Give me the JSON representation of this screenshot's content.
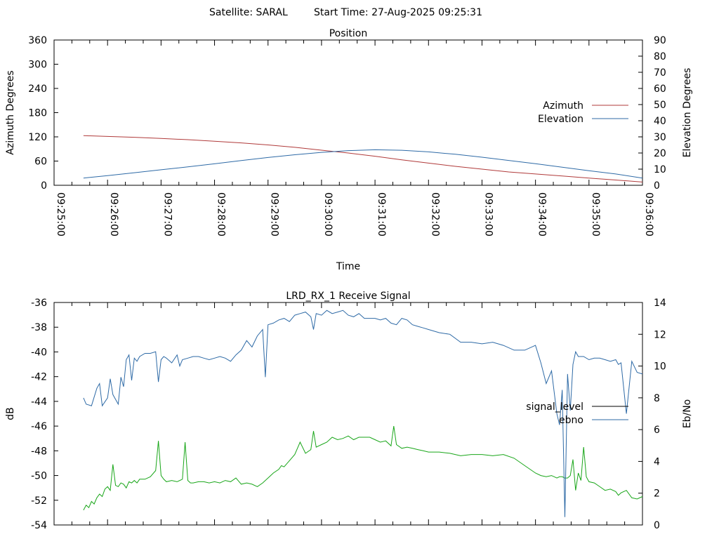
{
  "header": {
    "satellite": "Satellite: SARAL",
    "start_time": "Start Time: 27-Aug-2025 09:25:31"
  },
  "chart_data": [
    {
      "type": "line",
      "title": "Position",
      "xlabel": "Time",
      "ylabel": "Azimuth Degrees",
      "y2label": "Elevation Degrees",
      "x_ticks": [
        "09:25:00",
        "09:26:00",
        "09:27:00",
        "09:28:00",
        "09:29:00",
        "09:30:00",
        "09:31:00",
        "09:32:00",
        "09:33:00",
        "09:34:00",
        "09:35:00",
        "09:36:00"
      ],
      "x_range_minutes": [
        0,
        11
      ],
      "ylim": [
        0,
        360
      ],
      "y_ticks": [
        0,
        60,
        120,
        180,
        240,
        300,
        360
      ],
      "y2lim": [
        0,
        90
      ],
      "y2_ticks": [
        0,
        10,
        20,
        30,
        40,
        50,
        60,
        70,
        80,
        90
      ],
      "legend_position": "right",
      "series": [
        {
          "name": "Azimuth",
          "axis": "y",
          "color": "#b03a3a",
          "x": [
            0.55,
            1.0,
            1.5,
            2.0,
            2.5,
            3.0,
            3.5,
            4.0,
            4.5,
            5.0,
            5.5,
            6.0,
            6.5,
            7.0,
            7.5,
            8.0,
            8.5,
            9.0,
            9.5,
            10.0,
            10.5,
            11.0
          ],
          "y": [
            123,
            121,
            119,
            116,
            113,
            109,
            105,
            100,
            94,
            87,
            80,
            72,
            63,
            55,
            47,
            40,
            33,
            28,
            23,
            18,
            13,
            8
          ]
        },
        {
          "name": "Elevation",
          "axis": "y2",
          "color": "#2e6aa6",
          "x": [
            0.55,
            1.0,
            1.5,
            2.0,
            2.5,
            3.0,
            3.5,
            4.0,
            4.5,
            5.0,
            5.5,
            6.0,
            6.5,
            7.0,
            7.5,
            8.0,
            8.5,
            9.0,
            9.5,
            10.0,
            10.5,
            11.0
          ],
          "y": [
            4.5,
            6.0,
            7.8,
            9.6,
            11.4,
            13.3,
            15.3,
            17.2,
            18.9,
            20.4,
            21.5,
            22.0,
            21.7,
            20.7,
            19.2,
            17.4,
            15.4,
            13.4,
            11.2,
            9.0,
            7.0,
            4.5
          ]
        }
      ]
    },
    {
      "type": "line",
      "title": "LRD_RX_1 Receive Signal",
      "ylabel": "dB",
      "y2label": "Eb/No",
      "x_range_minutes": [
        0,
        11
      ],
      "ylim": [
        -54,
        -36
      ],
      "y_ticks": [
        -54,
        -52,
        -50,
        -48,
        -46,
        -44,
        -42,
        -40,
        -38,
        -36
      ],
      "y2lim": [
        0,
        14
      ],
      "y2_ticks": [
        0,
        2,
        4,
        6,
        8,
        10,
        12,
        14
      ],
      "legend_position": "right",
      "legend": [
        "signal_level",
        "ebno"
      ],
      "series": [
        {
          "name": "signal_level",
          "axis": "y",
          "color": "#19a619",
          "x": [
            0.55,
            0.6,
            0.65,
            0.7,
            0.75,
            0.8,
            0.85,
            0.9,
            0.95,
            1.0,
            1.05,
            1.1,
            1.15,
            1.2,
            1.25,
            1.3,
            1.35,
            1.4,
            1.45,
            1.5,
            1.55,
            1.6,
            1.7,
            1.8,
            1.9,
            1.95,
            2.0,
            2.05,
            2.1,
            2.2,
            2.3,
            2.4,
            2.45,
            2.5,
            2.55,
            2.6,
            2.7,
            2.8,
            2.9,
            3.0,
            3.1,
            3.2,
            3.3,
            3.4,
            3.5,
            3.6,
            3.7,
            3.8,
            3.9,
            4.0,
            4.1,
            4.2,
            4.25,
            4.3,
            4.4,
            4.5,
            4.6,
            4.7,
            4.8,
            4.85,
            4.9,
            5.0,
            5.1,
            5.2,
            5.3,
            5.4,
            5.5,
            5.6,
            5.7,
            5.8,
            5.9,
            6.0,
            6.1,
            6.2,
            6.3,
            6.35,
            6.4,
            6.5,
            6.6,
            6.7,
            6.8,
            6.9,
            7.0,
            7.2,
            7.4,
            7.6,
            7.8,
            8.0,
            8.2,
            8.4,
            8.6,
            8.8,
            9.0,
            9.1,
            9.2,
            9.3,
            9.4,
            9.45,
            9.5,
            9.55,
            9.6,
            9.65,
            9.7,
            9.75,
            9.8,
            9.85,
            9.9,
            9.95,
            10.0,
            10.1,
            10.2,
            10.3,
            10.4,
            10.5,
            10.55,
            10.6,
            10.7,
            10.8,
            10.9,
            11.0
          ],
          "y": [
            -52.8,
            -52.4,
            -52.6,
            -52.1,
            -52.3,
            -51.8,
            -51.5,
            -51.7,
            -51.1,
            -50.9,
            -51.2,
            -49.1,
            -50.8,
            -50.9,
            -50.6,
            -50.7,
            -51.0,
            -50.5,
            -50.6,
            -50.4,
            -50.6,
            -50.3,
            -50.3,
            -50.1,
            -49.6,
            -47.2,
            -50.0,
            -50.3,
            -50.5,
            -50.4,
            -50.5,
            -50.3,
            -47.3,
            -50.4,
            -50.6,
            -50.6,
            -50.5,
            -50.5,
            -50.6,
            -50.5,
            -50.6,
            -50.4,
            -50.5,
            -50.2,
            -50.7,
            -50.6,
            -50.7,
            -50.9,
            -50.6,
            -50.2,
            -49.8,
            -49.5,
            -49.2,
            -49.3,
            -48.8,
            -48.3,
            -47.3,
            -48.2,
            -47.9,
            -46.4,
            -47.7,
            -47.5,
            -47.3,
            -46.9,
            -47.1,
            -47.0,
            -46.8,
            -47.1,
            -46.9,
            -46.9,
            -46.9,
            -47.1,
            -47.3,
            -47.2,
            -47.6,
            -46.0,
            -47.5,
            -47.8,
            -47.7,
            -47.8,
            -47.9,
            -48.0,
            -48.1,
            -48.1,
            -48.2,
            -48.4,
            -48.3,
            -48.3,
            -48.4,
            -48.3,
            -48.6,
            -49.2,
            -49.8,
            -50.0,
            -50.1,
            -50.0,
            -50.2,
            -50.1,
            -50.1,
            -50.2,
            -50.2,
            -50.0,
            -48.7,
            -51.2,
            -49.8,
            -50.4,
            -47.7,
            -50.1,
            -50.5,
            -50.6,
            -50.9,
            -51.2,
            -51.1,
            -51.3,
            -51.6,
            -51.4,
            -51.2,
            -51.8,
            -51.9,
            -51.7
          ]
        },
        {
          "name": "ebno",
          "axis": "y2",
          "color": "#2e6aa6",
          "x": [
            0.55,
            0.6,
            0.7,
            0.8,
            0.85,
            0.9,
            1.0,
            1.05,
            1.1,
            1.2,
            1.25,
            1.3,
            1.35,
            1.4,
            1.45,
            1.5,
            1.55,
            1.6,
            1.7,
            1.8,
            1.9,
            1.95,
            2.0,
            2.05,
            2.1,
            2.2,
            2.3,
            2.35,
            2.4,
            2.5,
            2.6,
            2.7,
            2.8,
            2.9,
            3.0,
            3.1,
            3.2,
            3.3,
            3.4,
            3.5,
            3.6,
            3.7,
            3.8,
            3.9,
            3.95,
            4.0,
            4.1,
            4.2,
            4.3,
            4.4,
            4.5,
            4.6,
            4.7,
            4.8,
            4.85,
            4.9,
            5.0,
            5.1,
            5.2,
            5.3,
            5.4,
            5.5,
            5.6,
            5.7,
            5.8,
            5.9,
            6.0,
            6.1,
            6.2,
            6.3,
            6.4,
            6.5,
            6.6,
            6.7,
            6.8,
            6.9,
            7.0,
            7.2,
            7.4,
            7.6,
            7.8,
            8.0,
            8.2,
            8.4,
            8.6,
            8.8,
            9.0,
            9.1,
            9.2,
            9.3,
            9.4,
            9.45,
            9.5,
            9.55,
            9.6,
            9.65,
            9.7,
            9.75,
            9.8,
            9.9,
            10.0,
            10.1,
            10.2,
            10.3,
            10.4,
            10.5,
            10.55,
            10.6,
            10.7,
            10.8,
            10.9,
            11.0
          ],
          "y": [
            8.0,
            7.6,
            7.5,
            8.6,
            8.9,
            7.5,
            8.0,
            9.2,
            8.2,
            7.6,
            9.3,
            8.7,
            10.4,
            10.7,
            9.1,
            10.5,
            10.3,
            10.6,
            10.8,
            10.8,
            10.9,
            9.0,
            10.4,
            10.6,
            10.5,
            10.2,
            10.7,
            10.0,
            10.4,
            10.5,
            10.6,
            10.6,
            10.5,
            10.4,
            10.5,
            10.6,
            10.5,
            10.3,
            10.7,
            11.0,
            11.6,
            11.2,
            11.9,
            12.3,
            9.3,
            12.6,
            12.7,
            12.9,
            13.0,
            12.8,
            13.2,
            13.3,
            13.4,
            13.1,
            12.3,
            13.3,
            13.2,
            13.5,
            13.3,
            13.4,
            13.5,
            13.2,
            13.1,
            13.3,
            13.0,
            13.0,
            13.0,
            12.9,
            13.0,
            12.7,
            12.6,
            13.0,
            12.9,
            12.6,
            12.5,
            12.4,
            12.3,
            12.1,
            12.0,
            11.5,
            11.5,
            11.4,
            11.5,
            11.3,
            11.0,
            11.0,
            11.3,
            10.2,
            8.9,
            9.7,
            7.0,
            6.3,
            8.5,
            0.5,
            9.5,
            7.2,
            10.1,
            10.9,
            10.6,
            10.6,
            10.4,
            10.5,
            10.5,
            10.4,
            10.3,
            10.4,
            10.1,
            10.2,
            7.0,
            10.3,
            9.6,
            9.5
          ]
        }
      ]
    }
  ]
}
